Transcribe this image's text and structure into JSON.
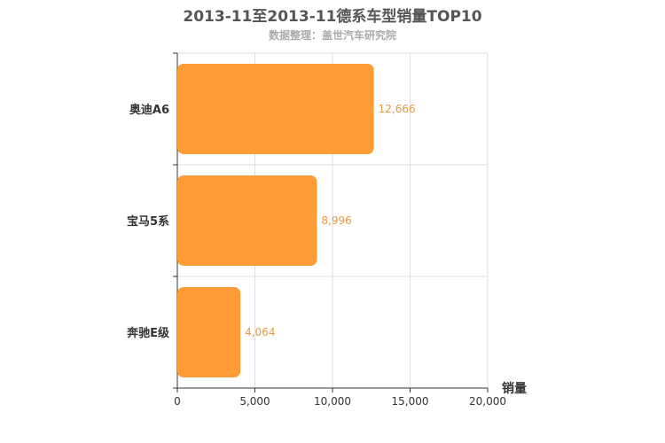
{
  "chart_data": {
    "type": "bar",
    "orientation": "horizontal",
    "title": "2013-11至2013-11德系车型销量TOP10",
    "subtitle": "数据整理：盖世汽车研究院",
    "categories": [
      "奥迪A6",
      "宝马5系",
      "奔驰E级"
    ],
    "values": [
      12666,
      8996,
      4064
    ],
    "value_labels": [
      "12,666",
      "8,996",
      "4,064"
    ],
    "xlabel": "销量",
    "ylabel": "",
    "xlim": [
      0,
      20000
    ],
    "xticks": [
      0,
      5000,
      10000,
      15000,
      20000
    ],
    "xtick_labels": [
      "0",
      "5,000",
      "10,000",
      "15,000",
      "20,000"
    ],
    "grid": true,
    "bar_color": "#ff9c35",
    "value_label_color": "#e89a3c"
  }
}
